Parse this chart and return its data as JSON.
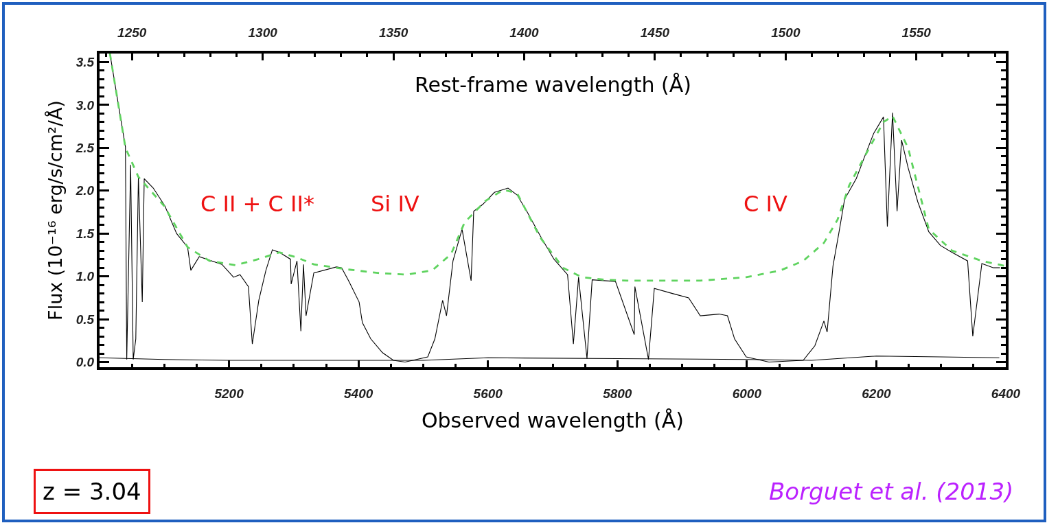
{
  "chart_data": {
    "type": "line",
    "xlabel": "Observed wavelength (Å)",
    "x2label": "Rest-frame wavelength (Å)",
    "ylabel": "Flux (10⁻¹⁶ erg/s/cm²/Å)",
    "xlim": [
      5000,
      6400
    ],
    "xticks": [
      5200,
      5400,
      5600,
      5800,
      6000,
      6200,
      6400
    ],
    "x2lim": [
      1237.6,
      1584.2
    ],
    "x2ticks": [
      1250,
      1300,
      1350,
      1400,
      1450,
      1500,
      1550
    ],
    "ylim": [
      -0.06,
      3.6
    ],
    "yticks": [
      {
        "value": 0,
        "label": "0.0"
      },
      0.5,
      {
        "value": 1,
        "label": "1.0"
      },
      1.5,
      {
        "value": 2,
        "label": "2.0"
      },
      2.5,
      {
        "value": 3,
        "label": "3.0"
      },
      3.5
    ],
    "grid": false,
    "marker": "none",
    "series": [
      {
        "color": "#000000",
        "line_style": "solid",
        "x": [
          5000,
          5100,
          5200,
          5400,
          5500,
          5600,
          5800,
          6000,
          6100,
          6200,
          6300,
          6390
        ],
        "values": [
          0.05,
          0.03,
          0.02,
          0.02,
          0.02,
          0.05,
          0.04,
          0.03,
          0.02,
          0.07,
          0.06,
          0.05
        ]
      },
      {
        "color": "#000000",
        "line_style": "solid",
        "x": [
          5016,
          5040,
          5042,
          5048,
          5052,
          5056,
          5060,
          5066,
          5069,
          5083,
          5101,
          5119,
          5136,
          5141,
          5154,
          5189,
          5207,
          5217,
          5230,
          5236,
          5246,
          5257,
          5267,
          5278,
          5295,
          5296,
          5305,
          5311,
          5315,
          5319,
          5331,
          5366,
          5374,
          5384,
          5401,
          5406,
          5419,
          5437,
          5454,
          5472,
          5507,
          5518,
          5530,
          5536,
          5546,
          5560,
          5574,
          5578,
          5592,
          5610,
          5631,
          5645,
          5660,
          5681,
          5702,
          5723,
          5732,
          5740,
          5753,
          5761,
          5797,
          5826,
          5827,
          5848,
          5857,
          5885,
          5910,
          5928,
          5957,
          5970,
          5981,
          5999,
          6034,
          6087,
          6105,
          6119,
          6124,
          6133,
          6142,
          6151,
          6169,
          6182,
          6196,
          6211,
          6217,
          6225,
          6232,
          6239,
          6249,
          6264,
          6281,
          6299,
          6317,
          6341,
          6349,
          6363,
          6381,
          6391
        ],
        "values": [
          3.6,
          2.51,
          0.03,
          2.3,
          0.03,
          0.27,
          2.16,
          0.7,
          2.14,
          2.03,
          1.82,
          1.5,
          1.34,
          1.07,
          1.23,
          1.14,
          0.99,
          1.02,
          0.88,
          0.21,
          0.72,
          1.07,
          1.31,
          1.28,
          1.2,
          0.91,
          1.18,
          0.36,
          1.14,
          0.54,
          1.04,
          1.11,
          1.1,
          0.96,
          0.7,
          0.46,
          0.27,
          0.11,
          0.02,
          0.0,
          0.06,
          0.27,
          0.72,
          0.54,
          1.18,
          1.55,
          0.95,
          1.76,
          1.84,
          1.98,
          2.03,
          1.95,
          1.76,
          1.47,
          1.2,
          1.02,
          0.21,
          0.99,
          0.04,
          0.96,
          0.94,
          0.32,
          0.88,
          0.03,
          0.86,
          0.8,
          0.75,
          0.54,
          0.56,
          0.54,
          0.27,
          0.06,
          0.0,
          0.02,
          0.19,
          0.48,
          0.35,
          1.12,
          1.5,
          1.9,
          2.14,
          2.4,
          2.67,
          2.86,
          1.58,
          2.91,
          1.76,
          2.59,
          2.27,
          1.87,
          1.52,
          1.36,
          1.28,
          1.18,
          0.3,
          1.15,
          1.1,
          1.1
        ]
      },
      {
        "color": "#5fd35f",
        "line_style": "dashed",
        "x": [
          5016,
          5040,
          5060,
          5100,
          5136,
          5170,
          5210,
          5245,
          5278,
          5305,
          5331,
          5384,
          5430,
          5475,
          5514,
          5543,
          5564,
          5596,
          5624,
          5645,
          5681,
          5716,
          5745,
          5780,
          5815,
          5870,
          5928,
          5999,
          6052,
          6087,
          6119,
          6140,
          6158,
          6182,
          6211,
          6225,
          6249,
          6281,
          6317,
          6363,
          6400
        ],
        "values": [
          3.6,
          2.5,
          2.16,
          1.82,
          1.34,
          1.18,
          1.13,
          1.2,
          1.28,
          1.22,
          1.14,
          1.08,
          1.04,
          1.02,
          1.07,
          1.26,
          1.63,
          1.88,
          2.01,
          1.97,
          1.45,
          1.1,
          0.99,
          0.96,
          0.95,
          0.95,
          0.95,
          0.99,
          1.07,
          1.18,
          1.39,
          1.66,
          2.06,
          2.4,
          2.8,
          2.87,
          2.5,
          1.55,
          1.3,
          1.18,
          1.12
        ]
      }
    ],
    "annotations": [
      "C II + C II*",
      "Si IV",
      "C IV",
      "z = 3.04",
      "Borguet et al. (2013)"
    ]
  }
}
